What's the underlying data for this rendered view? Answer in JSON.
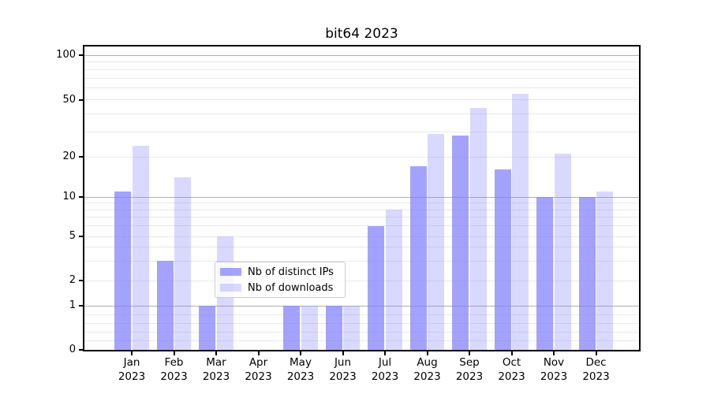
{
  "chart_data": {
    "type": "bar",
    "title": "bit64 2023",
    "categories": [
      "Jan 2023",
      "Feb 2023",
      "Mar 2023",
      "Apr 2023",
      "May 2023",
      "Jun 2023",
      "Jul 2023",
      "Aug 2023",
      "Sep 2023",
      "Oct 2023",
      "Nov 2023",
      "Dec 2023"
    ],
    "series": [
      {
        "name": "Nb of distinct IPs",
        "color": "rgba(128,128,255,0.72)",
        "values": [
          11,
          3,
          1,
          0,
          1,
          1,
          6,
          17,
          28,
          16,
          10,
          10
        ]
      },
      {
        "name": "Nb of downloads",
        "color": "rgba(128,128,255,0.30)",
        "values": [
          24,
          14,
          5,
          0,
          1,
          1,
          8,
          29,
          44,
          55,
          21,
          11
        ]
      }
    ],
    "y_axis": {
      "scale": "symlog",
      "ticks": [
        0,
        1,
        2,
        5,
        10,
        20,
        50,
        100
      ],
      "major_gridlines": [
        1,
        10,
        100
      ],
      "minor_gridlines": [
        0.2,
        0.4,
        0.6,
        0.8,
        2,
        3,
        4,
        5,
        6,
        7,
        8,
        9,
        20,
        30,
        40,
        50,
        60,
        70,
        80,
        90
      ],
      "range": [
        0,
        110
      ]
    },
    "legend": {
      "position": "lower center"
    },
    "grid": true
  },
  "colors": {
    "bar_accent": "#8080ff",
    "major_grid": "#b0b0b0",
    "minor_grid": "#e9e9e9",
    "axis": "#000000",
    "legend_border": "#cccccc"
  }
}
